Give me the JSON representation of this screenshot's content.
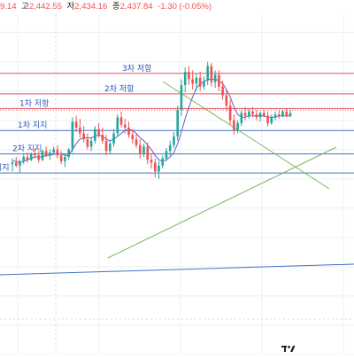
{
  "ohlc": {
    "open_value": "9.14",
    "high_label": "고",
    "high_value": "2,442.55",
    "low_label": "저",
    "low_value": "2,434.16",
    "close_label": "종",
    "close_value": "2,437.84",
    "change": "-1.30 (-0.05%)"
  },
  "colors": {
    "up": "#26a69a",
    "down": "#ef5350",
    "resistance": "#e05563",
    "support": "#3f72c9",
    "trendline": "#77b85c",
    "ma": "#6a5acd",
    "price_dotted": "#ef5350",
    "grid": "#eceff3",
    "background": "#ffffff"
  },
  "chart_data": {
    "type": "candlestick",
    "title": "",
    "ylim": [
      2300,
      2530
    ],
    "grid": true,
    "legend": "none",
    "levels": [
      {
        "label": "3차 저항",
        "value": 2492,
        "kind": "resistance"
      },
      {
        "label": "2차 저항",
        "value": 2478,
        "kind": "resistance"
      },
      {
        "label": "1차 저항",
        "value": 2468,
        "kind": "resistance"
      },
      {
        "label": "",
        "value": 2467,
        "kind": "current-price"
      },
      {
        "label": "1차 지지",
        "value": 2453,
        "kind": "support"
      },
      {
        "label": "2차 지지",
        "value": 2437,
        "kind": "support"
      },
      {
        "label": "지지",
        "value": 2424,
        "kind": "support"
      }
    ],
    "candles": [
      {
        "o": 2430,
        "h": 2434,
        "l": 2425,
        "c": 2431
      },
      {
        "o": 2431,
        "h": 2435,
        "l": 2428,
        "c": 2429
      },
      {
        "o": 2429,
        "h": 2433,
        "l": 2424,
        "c": 2432
      },
      {
        "o": 2432,
        "h": 2437,
        "l": 2430,
        "c": 2435
      },
      {
        "o": 2435,
        "h": 2438,
        "l": 2431,
        "c": 2433
      },
      {
        "o": 2433,
        "h": 2438,
        "l": 2432,
        "c": 2437
      },
      {
        "o": 2437,
        "h": 2441,
        "l": 2434,
        "c": 2436
      },
      {
        "o": 2436,
        "h": 2439,
        "l": 2431,
        "c": 2433
      },
      {
        "o": 2433,
        "h": 2440,
        "l": 2432,
        "c": 2439
      },
      {
        "o": 2439,
        "h": 2442,
        "l": 2435,
        "c": 2436
      },
      {
        "o": 2436,
        "h": 2440,
        "l": 2433,
        "c": 2438
      },
      {
        "o": 2438,
        "h": 2442,
        "l": 2436,
        "c": 2440
      },
      {
        "o": 2440,
        "h": 2443,
        "l": 2434,
        "c": 2436
      },
      {
        "o": 2436,
        "h": 2439,
        "l": 2430,
        "c": 2432
      },
      {
        "o": 2432,
        "h": 2437,
        "l": 2428,
        "c": 2435
      },
      {
        "o": 2435,
        "h": 2441,
        "l": 2433,
        "c": 2440
      },
      {
        "o": 2440,
        "h": 2462,
        "l": 2438,
        "c": 2459
      },
      {
        "o": 2459,
        "h": 2463,
        "l": 2452,
        "c": 2455
      },
      {
        "o": 2455,
        "h": 2461,
        "l": 2448,
        "c": 2451
      },
      {
        "o": 2451,
        "h": 2456,
        "l": 2445,
        "c": 2447
      },
      {
        "o": 2447,
        "h": 2451,
        "l": 2440,
        "c": 2442
      },
      {
        "o": 2442,
        "h": 2448,
        "l": 2439,
        "c": 2446
      },
      {
        "o": 2446,
        "h": 2456,
        "l": 2444,
        "c": 2454
      },
      {
        "o": 2454,
        "h": 2458,
        "l": 2448,
        "c": 2450
      },
      {
        "o": 2450,
        "h": 2455,
        "l": 2444,
        "c": 2446
      },
      {
        "o": 2446,
        "h": 2450,
        "l": 2436,
        "c": 2439
      },
      {
        "o": 2439,
        "h": 2446,
        "l": 2437,
        "c": 2444
      },
      {
        "o": 2444,
        "h": 2454,
        "l": 2442,
        "c": 2451
      },
      {
        "o": 2451,
        "h": 2464,
        "l": 2449,
        "c": 2462
      },
      {
        "o": 2462,
        "h": 2466,
        "l": 2455,
        "c": 2457
      },
      {
        "o": 2457,
        "h": 2461,
        "l": 2451,
        "c": 2455
      },
      {
        "o": 2455,
        "h": 2459,
        "l": 2448,
        "c": 2450
      },
      {
        "o": 2450,
        "h": 2454,
        "l": 2444,
        "c": 2447
      },
      {
        "o": 2447,
        "h": 2451,
        "l": 2441,
        "c": 2443
      },
      {
        "o": 2443,
        "h": 2447,
        "l": 2434,
        "c": 2437
      },
      {
        "o": 2437,
        "h": 2444,
        "l": 2435,
        "c": 2442
      },
      {
        "o": 2442,
        "h": 2445,
        "l": 2430,
        "c": 2433
      },
      {
        "o": 2433,
        "h": 2437,
        "l": 2427,
        "c": 2431
      },
      {
        "o": 2431,
        "h": 2434,
        "l": 2421,
        "c": 2425
      },
      {
        "o": 2425,
        "h": 2432,
        "l": 2420,
        "c": 2429
      },
      {
        "o": 2429,
        "h": 2436,
        "l": 2427,
        "c": 2434
      },
      {
        "o": 2434,
        "h": 2441,
        "l": 2432,
        "c": 2439
      },
      {
        "o": 2439,
        "h": 2446,
        "l": 2436,
        "c": 2443
      },
      {
        "o": 2443,
        "h": 2452,
        "l": 2441,
        "c": 2449
      },
      {
        "o": 2449,
        "h": 2470,
        "l": 2446,
        "c": 2467
      },
      {
        "o": 2467,
        "h": 2488,
        "l": 2463,
        "c": 2484
      },
      {
        "o": 2484,
        "h": 2496,
        "l": 2479,
        "c": 2493
      },
      {
        "o": 2493,
        "h": 2497,
        "l": 2484,
        "c": 2488
      },
      {
        "o": 2488,
        "h": 2494,
        "l": 2481,
        "c": 2485
      },
      {
        "o": 2485,
        "h": 2492,
        "l": 2480,
        "c": 2489
      },
      {
        "o": 2489,
        "h": 2493,
        "l": 2480,
        "c": 2483
      },
      {
        "o": 2483,
        "h": 2490,
        "l": 2481,
        "c": 2487
      },
      {
        "o": 2487,
        "h": 2500,
        "l": 2484,
        "c": 2497
      },
      {
        "o": 2497,
        "h": 2499,
        "l": 2483,
        "c": 2486
      },
      {
        "o": 2486,
        "h": 2494,
        "l": 2482,
        "c": 2491
      },
      {
        "o": 2491,
        "h": 2494,
        "l": 2480,
        "c": 2483
      },
      {
        "o": 2483,
        "h": 2487,
        "l": 2474,
        "c": 2477
      },
      {
        "o": 2477,
        "h": 2481,
        "l": 2466,
        "c": 2470
      },
      {
        "o": 2470,
        "h": 2474,
        "l": 2457,
        "c": 2460
      },
      {
        "o": 2460,
        "h": 2464,
        "l": 2450,
        "c": 2453
      },
      {
        "o": 2453,
        "h": 2460,
        "l": 2451,
        "c": 2458
      },
      {
        "o": 2458,
        "h": 2467,
        "l": 2456,
        "c": 2465
      },
      {
        "o": 2465,
        "h": 2469,
        "l": 2460,
        "c": 2463
      },
      {
        "o": 2463,
        "h": 2468,
        "l": 2461,
        "c": 2466
      },
      {
        "o": 2466,
        "h": 2469,
        "l": 2462,
        "c": 2464
      },
      {
        "o": 2464,
        "h": 2467,
        "l": 2460,
        "c": 2462
      },
      {
        "o": 2462,
        "h": 2466,
        "l": 2459,
        "c": 2465
      },
      {
        "o": 2465,
        "h": 2467,
        "l": 2462,
        "c": 2463
      },
      {
        "o": 2463,
        "h": 2466,
        "l": 2456,
        "c": 2458
      },
      {
        "o": 2458,
        "h": 2464,
        "l": 2457,
        "c": 2462
      },
      {
        "o": 2462,
        "h": 2466,
        "l": 2460,
        "c": 2464
      },
      {
        "o": 2464,
        "h": 2467,
        "l": 2461,
        "c": 2463
      },
      {
        "o": 2463,
        "h": 2467,
        "l": 2462,
        "c": 2466
      },
      {
        "o": 2466,
        "h": 2468,
        "l": 2462,
        "c": 2463
      },
      {
        "o": 2463,
        "h": 2467,
        "l": 2462,
        "c": 2465
      }
    ],
    "ma": [
      2432,
      2432,
      2431,
      2432,
      2433,
      2434,
      2435,
      2435,
      2435,
      2436,
      2436,
      2437,
      2437,
      2437,
      2436,
      2436,
      2440,
      2444,
      2447,
      2448,
      2448,
      2448,
      2449,
      2450,
      2449,
      2447,
      2446,
      2447,
      2449,
      2451,
      2453,
      2454,
      2453,
      2451,
      2448,
      2446,
      2443,
      2440,
      2436,
      2433,
      2432,
      2433,
      2435,
      2438,
      2444,
      2452,
      2461,
      2469,
      2476,
      2482,
      2485,
      2486,
      2488,
      2488,
      2488,
      2487,
      2485,
      2481,
      2476,
      2469,
      2464,
      2462,
      2462,
      2463,
      2463,
      2463,
      2463,
      2463,
      2462,
      2462,
      2462,
      2463,
      2463,
      2463,
      2463
    ]
  }
}
